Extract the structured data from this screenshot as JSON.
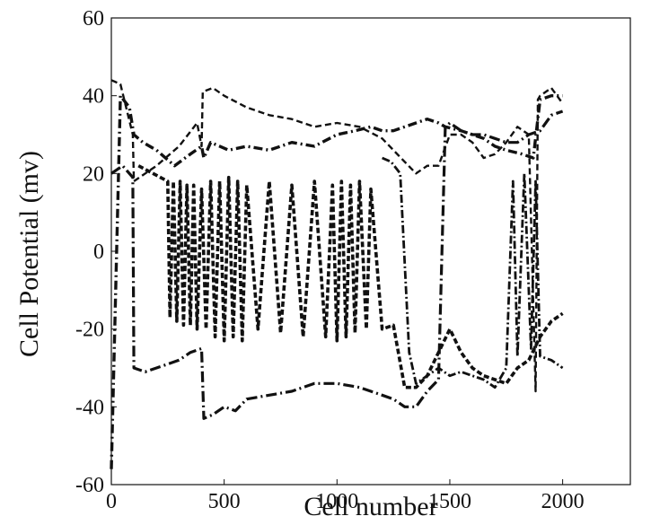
{
  "chart_data": {
    "type": "line",
    "title": "",
    "xlabel": "Cell number",
    "ylabel": "Cell Potential (mv)",
    "xlim": [
      0,
      2300
    ],
    "ylim": [
      -60,
      60
    ],
    "xticks": [
      0,
      500,
      1000,
      1500,
      2000
    ],
    "yticks": [
      -60,
      -40,
      -20,
      0,
      20,
      40,
      60
    ],
    "grid": false,
    "legend": "none",
    "line_color": "#111111",
    "series": [
      {
        "x": [
          0,
          40,
          80,
          100,
          140,
          200,
          280,
          350,
          400,
          410,
          440,
          520,
          600,
          700,
          800,
          900,
          1000,
          1080,
          1150,
          1200,
          1250,
          1300,
          1350,
          1400,
          1450,
          1480,
          1550,
          1600,
          1650,
          1700,
          1750,
          1820,
          1870,
          1900,
          1950,
          2000
        ],
        "y": [
          -56,
          40,
          37,
          30,
          28,
          26,
          22,
          25,
          27,
          24,
          28,
          26,
          27,
          26,
          28,
          27,
          30,
          31,
          32,
          31,
          31,
          32,
          33,
          34,
          33,
          32,
          31,
          30,
          29,
          27,
          26,
          25,
          24,
          39,
          40,
          40
        ]
      },
      {
        "x": [
          0,
          40,
          95,
          100,
          200,
          300,
          380,
          400,
          405,
          450,
          500,
          600,
          700,
          800,
          900,
          1000,
          1100,
          1200,
          1300,
          1350,
          1400,
          1450,
          1500,
          1550,
          1600,
          1650,
          1700,
          1750,
          1800,
          1850,
          1880,
          1890,
          1900,
          1950,
          2000
        ],
        "y": [
          44,
          43,
          30,
          18,
          22,
          27,
          33,
          27,
          41,
          42,
          40,
          37,
          35,
          34,
          32,
          33,
          32,
          29,
          23,
          20,
          22,
          22,
          30,
          30,
          28,
          24,
          25,
          28,
          32,
          30,
          -36,
          39,
          40,
          42,
          38
        ]
      },
      {
        "x": [
          0,
          50,
          95,
          100,
          150,
          200,
          250,
          300,
          350,
          400,
          410,
          450,
          500,
          550,
          600,
          700,
          800,
          900,
          1000,
          1100,
          1200,
          1250,
          1300,
          1350,
          1400,
          1450,
          1480,
          1500,
          1550,
          1600,
          1650,
          1700,
          1750,
          1800,
          1850,
          1900,
          1950,
          2000
        ],
        "y": [
          20,
          22,
          19,
          -30,
          -31,
          -30,
          -29,
          -28,
          -26,
          -25,
          -43,
          -42,
          -40,
          -41,
          -38,
          -37,
          -36,
          -34,
          -34,
          -35,
          -37,
          -38,
          -40,
          -40,
          -36,
          -33,
          32,
          33,
          31,
          30,
          30,
          29,
          28,
          28,
          30,
          31,
          35,
          36
        ]
      },
      {
        "x": [
          120,
          250,
          260,
          275,
          290,
          305,
          320,
          335,
          350,
          365,
          380,
          400,
          420,
          440,
          460,
          480,
          500,
          520,
          540,
          560,
          580,
          600,
          650,
          700,
          750,
          800,
          850,
          900,
          950,
          980,
          1000,
          1020,
          1040,
          1060,
          1080,
          1100,
          1130,
          1150,
          1200,
          1250,
          1300,
          1350,
          1400,
          1450,
          1500,
          1550,
          1600,
          1650,
          1700,
          1750,
          1800,
          1850,
          1900,
          1950,
          2000
        ],
        "y": [
          22,
          18,
          -17,
          18,
          -18,
          18,
          -19,
          17,
          -19,
          17,
          -20,
          16,
          -20,
          18,
          -22,
          18,
          -23,
          19,
          -22,
          18,
          -23,
          17,
          -20,
          18,
          -21,
          17,
          -22,
          18,
          -22,
          17,
          -23,
          18,
          -22,
          17,
          -21,
          18,
          -20,
          16,
          -20,
          -19,
          -35,
          -35,
          -32,
          -26,
          -20,
          -26,
          -30,
          -32,
          -33,
          -34,
          -30,
          -28,
          -22,
          -18,
          -16
        ]
      },
      {
        "x": [
          1200,
          1240,
          1280,
          1320,
          1350,
          1400,
          1450,
          1500,
          1550,
          1600,
          1650,
          1700,
          1750,
          1780,
          1800,
          1830,
          1860,
          1880,
          1900,
          1950,
          2000
        ],
        "y": [
          24,
          23,
          20,
          -26,
          -34,
          -32,
          -30,
          -32,
          -31,
          -32,
          -33,
          -35,
          -30,
          18,
          -27,
          20,
          -25,
          18,
          -27,
          -28,
          -30
        ]
      }
    ]
  }
}
